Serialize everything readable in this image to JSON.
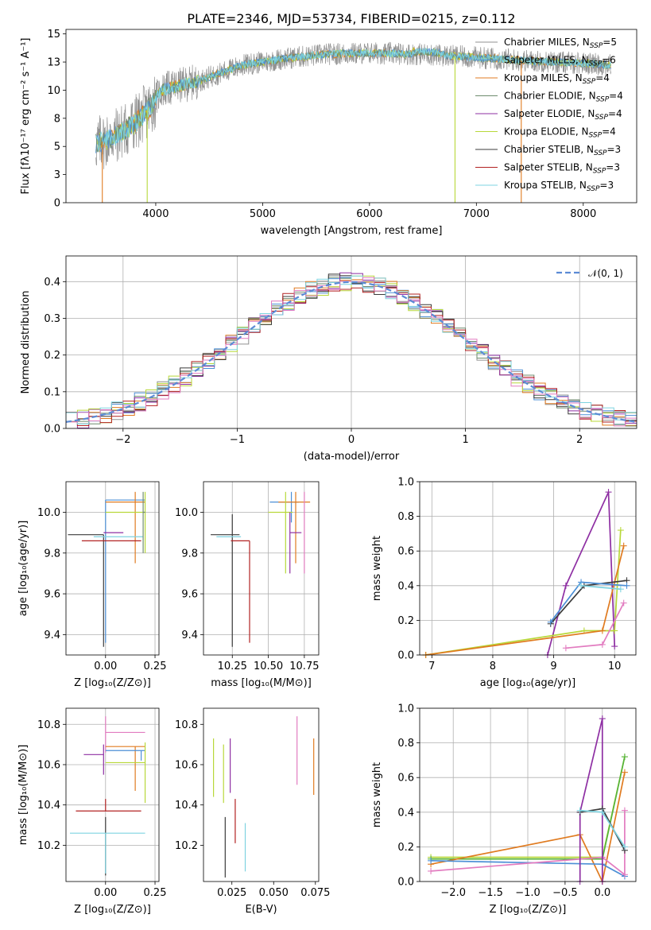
{
  "title": "PLATE=2346, MJD=53734, FIBERID=0215, z=0.112",
  "colors": {
    "chab_miles": "#909090",
    "salp_miles": "#4c8fd6",
    "krou_miles": "#e07b20",
    "chab_elodie": "#6e8b6e",
    "salp_elodie": "#8e2fa3",
    "krou_elodie": "#b8d83a",
    "chab_stelib": "#3b3b3b",
    "salp_stelib": "#b22222",
    "krou_stelib": "#7ed3e0",
    "extra_pink": "#e27cc0",
    "extra_green": "#55b33a",
    "normal": "#5b8bd5"
  },
  "chart_data": [
    {
      "id": "spectrum",
      "type": "line",
      "xlabel": "wavelength [Angstrom, rest frame]",
      "ylabel": "Flux [fλ10⁻¹⁷ erg cm⁻² s⁻¹ A⁻¹]",
      "xlim": [
        3160,
        8500
      ],
      "ylim": [
        0,
        15.4
      ],
      "xticks": [
        4000,
        5000,
        6000,
        7000,
        8000
      ],
      "yticks": [
        0.0,
        2.5,
        5.0,
        7.5,
        10.0,
        12.5,
        15.0
      ],
      "grid": false,
      "legend": "right",
      "continuum": [
        [
          3440,
          5.2
        ],
        [
          3600,
          5.8
        ],
        [
          3800,
          7.0
        ],
        [
          3950,
          8.5
        ],
        [
          4050,
          10.0
        ],
        [
          4400,
          10.8
        ],
        [
          4800,
          12.2
        ],
        [
          5200,
          12.8
        ],
        [
          5600,
          13.2
        ],
        [
          6000,
          13.3
        ],
        [
          6500,
          13.2
        ],
        [
          7000,
          12.9
        ],
        [
          7500,
          12.6
        ],
        [
          8000,
          12.4
        ],
        [
          8260,
          12.2
        ]
      ],
      "series": [
        {
          "name": "Chabrier MILES, N_SSP=5",
          "key": "chab_miles"
        },
        {
          "name": "Salpeter MILES, N_SSP=6",
          "key": "salp_miles"
        },
        {
          "name": "Kroupa MILES, N_SSP=4",
          "key": "krou_miles"
        },
        {
          "name": "Chabrier ELODIE, N_SSP=4",
          "key": "chab_elodie"
        },
        {
          "name": "Salpeter ELODIE, N_SSP=4",
          "key": "salp_elodie"
        },
        {
          "name": "Kroupa ELODIE, N_SSP=4",
          "key": "krou_elodie"
        },
        {
          "name": "Chabrier STELIB, N_SSP=3",
          "key": "chab_stelib"
        },
        {
          "name": "Salpeter STELIB, N_SSP=3",
          "key": "salp_stelib"
        },
        {
          "name": "Kroupa STELIB, N_SSP=3",
          "key": "krou_stelib"
        }
      ],
      "drops": [
        {
          "x": 3500,
          "key": "krou_miles"
        },
        {
          "x": 3920,
          "key": "krou_elodie"
        },
        {
          "x": 6800,
          "key": "krou_elodie"
        },
        {
          "x": 7420,
          "key": "krou_miles"
        }
      ]
    },
    {
      "id": "residuals",
      "type": "histogram",
      "xlabel": "(data-model)/error",
      "ylabel": "Normed distribution",
      "xlim": [
        -2.5,
        2.5
      ],
      "ylim": [
        0,
        0.47
      ],
      "xticks": [
        -2,
        -1,
        0,
        1,
        2
      ],
      "yticks": [
        0.0,
        0.1,
        0.2,
        0.3,
        0.4
      ],
      "grid": true,
      "legend": "top-right",
      "normal_label": "𝒩(0, 1)",
      "bin_width": 0.1
    },
    {
      "id": "Z-age",
      "type": "errorbar",
      "xlabel": "Z [log₁₀(Z/Z⊙)]",
      "ylabel": "age  [log₁₀(age/yr)]",
      "xlim": [
        -0.2,
        0.27
      ],
      "ylim": [
        9.3,
        10.15
      ],
      "xticks": [
        0.0,
        0.25
      ],
      "xticklabels": [
        "0.00",
        "0.25"
      ],
      "yticks": [
        9.4,
        9.6,
        9.8,
        10.0
      ],
      "grid": true,
      "points": [
        {
          "key": "salp_miles",
          "x": 0.0,
          "xe": [
            0.0,
            0.2
          ],
          "y": 10.06,
          "ye": [
            0.7,
            0.0
          ]
        },
        {
          "key": "krou_miles",
          "x": 0.15,
          "xe": [
            0.15,
            0.05
          ],
          "y": 10.05,
          "ye": [
            0.3,
            0.05
          ]
        },
        {
          "key": "krou_elodie",
          "x": 0.2,
          "xe": [
            0.2,
            0.0
          ],
          "y": 10.0,
          "ye": [
            0.2,
            0.1
          ]
        },
        {
          "key": "salp_elodie",
          "x": -0.01,
          "xe": [
            0.0,
            0.1
          ],
          "y": 9.9,
          "ye": [
            0.0,
            0.0
          ]
        },
        {
          "key": "chab_stelib",
          "x": -0.01,
          "xe": [
            0.18,
            0.0
          ],
          "y": 9.89,
          "ye": [
            0.55,
            0.0
          ]
        },
        {
          "key": "salp_stelib",
          "x": 0.18,
          "xe": [
            0.3,
            0.0
          ],
          "y": 9.86,
          "ye": [
            0.0,
            0.0
          ]
        },
        {
          "key": "krou_stelib",
          "x": -0.01,
          "xe": [
            0.05,
            0.2
          ],
          "y": 9.88,
          "ye": [
            0.0,
            0.0
          ]
        },
        {
          "key": "chab_elodie",
          "x": 0.19,
          "xe": [
            0.0,
            0.01
          ],
          "y": 10.0,
          "ye": [
            0.2,
            0.1
          ]
        }
      ]
    },
    {
      "id": "mass-age",
      "type": "errorbar",
      "xlabel": "mass [log₁₀(M/M⊙)]",
      "ylabel": "",
      "xlim": [
        10.05,
        10.85
      ],
      "ylim": [
        9.3,
        10.15
      ],
      "xticks": [
        10.25,
        10.5,
        10.75
      ],
      "xticklabels": [
        "10.25",
        "10.50",
        "10.75"
      ],
      "yticks": [
        9.4,
        9.6,
        9.8,
        10.0
      ],
      "grid": true,
      "points": [
        {
          "key": "salp_miles",
          "x": 10.66,
          "xe": [
            0.15,
            0.05
          ],
          "y": 10.05,
          "ye": [
            0.1,
            0.05
          ]
        },
        {
          "key": "krou_miles",
          "x": 10.69,
          "xe": [
            0.12,
            0.1
          ],
          "y": 10.05,
          "ye": [
            0.3,
            0.05
          ]
        },
        {
          "key": "krou_elodie",
          "x": 10.62,
          "xe": [
            0.12,
            0.05
          ],
          "y": 10.0,
          "ye": [
            0.3,
            0.1
          ]
        },
        {
          "key": "salp_elodie",
          "x": 10.65,
          "xe": [
            0.0,
            0.08
          ],
          "y": 9.9,
          "ye": [
            0.2,
            0.1
          ]
        },
        {
          "key": "chab_stelib",
          "x": 10.25,
          "xe": [
            0.15,
            0.05
          ],
          "y": 9.89,
          "ye": [
            0.55,
            0.1
          ]
        },
        {
          "key": "salp_stelib",
          "x": 10.37,
          "xe": [
            0.13,
            0.0
          ],
          "y": 9.86,
          "ye": [
            0.5,
            0.0
          ]
        },
        {
          "key": "krou_stelib",
          "x": 10.26,
          "xe": [
            0.12,
            0.05
          ],
          "y": 9.88,
          "ye": [
            0.0,
            0.0
          ]
        },
        {
          "key": "extra_pink",
          "x": 10.75,
          "xe": [
            0.0,
            0.0
          ],
          "y": 10.0,
          "ye": [
            0.3,
            0.1
          ]
        }
      ]
    },
    {
      "id": "age-weight",
      "type": "line",
      "xlabel": "age  [log₁₀(age/yr)]",
      "ylabel": "mass weight",
      "xlim": [
        6.8,
        10.35
      ],
      "ylim": [
        0,
        1.0
      ],
      "xticks": [
        7,
        8,
        9,
        10
      ],
      "yticks": [
        0.0,
        0.2,
        0.4,
        0.6,
        0.8,
        1.0
      ],
      "grid": true,
      "series": [
        {
          "key": "salp_elodie",
          "points": [
            [
              8.9,
              0.0
            ],
            [
              9.2,
              0.4
            ],
            [
              9.9,
              0.94
            ],
            [
              10.0,
              0.05
            ]
          ]
        },
        {
          "key": "krou_elodie",
          "points": [
            [
              6.9,
              0.0
            ],
            [
              9.5,
              0.14
            ],
            [
              10.0,
              0.14
            ],
            [
              10.1,
              0.72
            ]
          ]
        },
        {
          "key": "krou_miles",
          "points": [
            [
              6.9,
              0.0
            ],
            [
              9.8,
              0.14
            ],
            [
              10.15,
              0.63
            ]
          ]
        },
        {
          "key": "chab_stelib",
          "points": [
            [
              8.95,
              0.18
            ],
            [
              9.5,
              0.4
            ],
            [
              10.2,
              0.43
            ]
          ]
        },
        {
          "key": "salp_miles",
          "points": [
            [
              8.95,
              0.19
            ],
            [
              9.45,
              0.42
            ],
            [
              10.2,
              0.4
            ]
          ]
        },
        {
          "key": "extra_pink",
          "points": [
            [
              9.2,
              0.04
            ],
            [
              9.8,
              0.06
            ],
            [
              10.15,
              0.3
            ]
          ]
        },
        {
          "key": "krou_stelib",
          "points": [
            [
              9.45,
              0.4
            ],
            [
              10.1,
              0.38
            ]
          ]
        }
      ]
    },
    {
      "id": "Z-mass",
      "type": "errorbar",
      "xlabel": "Z [log₁₀(Z/Z⊙)]",
      "ylabel": "mass [log₁₀(M/M⊙)]",
      "xlim": [
        -0.2,
        0.27
      ],
      "ylim": [
        10.02,
        10.88
      ],
      "xticks": [
        0.0,
        0.25
      ],
      "xticklabels": [
        "0.00",
        "0.25"
      ],
      "yticks": [
        10.2,
        10.4,
        10.6,
        10.8
      ],
      "grid": true,
      "points": [
        {
          "key": "extra_pink",
          "x": 0.0,
          "xe": [
            0.0,
            0.2
          ],
          "y": 10.76,
          "ye": [
            0.1,
            0.08
          ]
        },
        {
          "key": "krou_miles",
          "x": 0.15,
          "xe": [
            0.15,
            0.05
          ],
          "y": 10.69,
          "ye": [
            0.22,
            0.0
          ]
        },
        {
          "key": "salp_miles",
          "x": 0.18,
          "xe": [
            0.18,
            0.02
          ],
          "y": 10.67,
          "ye": [
            0.05,
            0.0
          ]
        },
        {
          "key": "salp_elodie",
          "x": -0.01,
          "xe": [
            0.1,
            0.0
          ],
          "y": 10.65,
          "ye": [
            0.1,
            0.05
          ]
        },
        {
          "key": "krou_elodie",
          "x": 0.2,
          "xe": [
            0.2,
            0.0
          ],
          "y": 10.61,
          "ye": [
            0.2,
            0.1
          ]
        },
        {
          "key": "salp_stelib",
          "x": 0.0,
          "xe": [
            0.15,
            0.18
          ],
          "y": 10.37,
          "ye": [
            0.0,
            0.06
          ]
        },
        {
          "key": "chab_stelib",
          "x": 0.0,
          "xe": [
            0.0,
            0.0
          ],
          "y": 10.27,
          "ye": [
            0.22,
            0.07
          ]
        },
        {
          "key": "krou_stelib",
          "x": 0.0,
          "xe": [
            0.18,
            0.2
          ],
          "y": 10.26,
          "ye": [
            0.2,
            0.0
          ]
        }
      ]
    },
    {
      "id": "ebv-mass",
      "type": "errorbar",
      "xlabel": "E(B-V)",
      "ylabel": "",
      "xlim": [
        0.008,
        0.077
      ],
      "ylim": [
        10.02,
        10.88
      ],
      "xticks": [
        0.025,
        0.05,
        0.075
      ],
      "xticklabels": [
        "0.025",
        "0.050",
        "0.075"
      ],
      "yticks": [
        10.2,
        10.4,
        10.6,
        10.8
      ],
      "grid": false,
      "points": [
        {
          "key": "krou_elodie",
          "x": 0.014,
          "y": 10.6,
          "ye": [
            0.16,
            0.13
          ]
        },
        {
          "key": "krou_elodie",
          "x": 0.02,
          "y": 10.55,
          "ye": [
            0.14,
            0.15
          ]
        },
        {
          "key": "chab_stelib",
          "x": 0.021,
          "y": 10.2,
          "ye": [
            0.16,
            0.14
          ]
        },
        {
          "key": "salp_elodie",
          "x": 0.024,
          "y": 10.6,
          "ye": [
            0.14,
            0.13
          ]
        },
        {
          "key": "salp_stelib",
          "x": 0.027,
          "y": 10.32,
          "ye": [
            0.11,
            0.11
          ]
        },
        {
          "key": "krou_stelib",
          "x": 0.033,
          "y": 10.19,
          "ye": [
            0.12,
            0.12
          ]
        },
        {
          "key": "extra_pink",
          "x": 0.064,
          "y": 10.67,
          "ye": [
            0.17,
            0.17
          ]
        },
        {
          "key": "krou_miles",
          "x": 0.074,
          "y": 10.59,
          "ye": [
            0.14,
            0.14
          ]
        }
      ]
    },
    {
      "id": "Z-weight",
      "type": "line",
      "xlabel": "Z [log₁₀(Z/Z⊙)]",
      "ylabel": "mass weight",
      "xlim": [
        -2.45,
        0.45
      ],
      "ylim": [
        0,
        1.0
      ],
      "xticks": [
        -2.0,
        -1.5,
        -1.0,
        -0.5,
        0.0
      ],
      "xticklabels": [
        "−2.0",
        "−1.5",
        "−1.0",
        "−0.5",
        "0.0"
      ],
      "yticks": [
        0.0,
        0.2,
        0.4,
        0.6,
        0.8,
        1.0
      ],
      "grid": true,
      "series": [
        {
          "key": "krou_elodie",
          "points": [
            [
              -2.3,
              0.14
            ],
            [
              0.0,
              0.14
            ],
            [
              0.3,
              0.72
            ]
          ]
        },
        {
          "key": "extra_green",
          "points": [
            [
              -2.3,
              0.13
            ],
            [
              0.0,
              0.13
            ],
            [
              0.3,
              0.72
            ]
          ]
        },
        {
          "key": "krou_miles",
          "points": [
            [
              -2.3,
              0.1
            ],
            [
              -0.3,
              0.27
            ],
            [
              0.0,
              0.0
            ],
            [
              0.3,
              0.63
            ]
          ]
        },
        {
          "key": "salp_miles",
          "points": [
            [
              -2.3,
              0.12
            ],
            [
              0.0,
              0.1
            ],
            [
              0.3,
              0.03
            ]
          ]
        },
        {
          "key": "extra_pink",
          "points": [
            [
              -2.3,
              0.06
            ],
            [
              0.0,
              0.14
            ],
            [
              0.3,
              0.04
            ],
            [
              0.3,
              0.41
            ]
          ]
        },
        {
          "key": "salp_elodie",
          "points": [
            [
              -0.3,
              0.0
            ],
            [
              -0.3,
              0.4
            ],
            [
              0.0,
              0.94
            ],
            [
              0.0,
              0.0
            ]
          ]
        },
        {
          "key": "chab_stelib",
          "points": [
            [
              -0.3,
              0.4
            ],
            [
              0.0,
              0.42
            ],
            [
              0.3,
              0.18
            ]
          ]
        },
        {
          "key": "krou_stelib",
          "points": [
            [
              -0.3,
              0.41
            ],
            [
              0.0,
              0.4
            ],
            [
              0.3,
              0.2
            ]
          ]
        }
      ]
    }
  ]
}
